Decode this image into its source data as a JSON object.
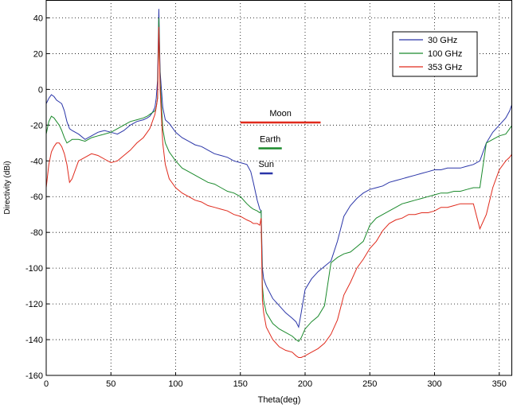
{
  "chart_data": {
    "type": "line",
    "xlabel": "Theta(deg)",
    "ylabel": "Directivity (dBi)",
    "xlim": [
      0,
      360
    ],
    "ylim": [
      -160,
      50
    ],
    "xticks": [
      0,
      50,
      100,
      150,
      200,
      250,
      300,
      350
    ],
    "yticks": [
      40,
      20,
      0,
      -20,
      -40,
      -60,
      -80,
      -100,
      -120,
      -140,
      -160
    ],
    "xtick_labels": [
      "0",
      "50",
      "100",
      "150",
      "200",
      "250",
      "300",
      "350"
    ],
    "ytick_labels": [
      "40",
      "20",
      "0",
      "-20",
      "-40",
      "-60",
      "-80",
      "-100",
      "-120",
      "-140",
      "-160"
    ],
    "grid": true,
    "legend_position": "top-right",
    "series": [
      {
        "name": "30 GHz",
        "color": "#2a35a8",
        "x": [
          0,
          2,
          4,
          6,
          8,
          10,
          12,
          14,
          16,
          18,
          20,
          25,
          30,
          35,
          40,
          45,
          50,
          55,
          60,
          65,
          70,
          75,
          78,
          80,
          82,
          84,
          85,
          86,
          87,
          88,
          90,
          92,
          95,
          100,
          105,
          110,
          115,
          120,
          125,
          130,
          135,
          140,
          145,
          150,
          155,
          158,
          160,
          163,
          165,
          166,
          167,
          168,
          170,
          175,
          180,
          185,
          190,
          193,
          195,
          197,
          200,
          205,
          210,
          215,
          220,
          225,
          230,
          235,
          240,
          245,
          250,
          255,
          260,
          265,
          270,
          275,
          280,
          285,
          290,
          295,
          300,
          305,
          310,
          315,
          320,
          325,
          330,
          335,
          340,
          345,
          350,
          355,
          358,
          360
        ],
        "y": [
          -8,
          -5,
          -3,
          -4,
          -6,
          -7,
          -8,
          -12,
          -18,
          -22,
          -23,
          -25,
          -28,
          -26,
          -24,
          -23,
          -24,
          -25,
          -23,
          -20,
          -18,
          -17,
          -16,
          -15,
          -13,
          -10,
          -5,
          5,
          45,
          10,
          -10,
          -17,
          -19,
          -24,
          -27,
          -29,
          -31,
          -32,
          -34,
          -36,
          -37,
          -38,
          -40,
          -41,
          -42,
          -46,
          -52,
          -62,
          -67,
          -68,
          -100,
          -106,
          -110,
          -117,
          -121,
          -125,
          -128,
          -130,
          -133,
          -125,
          -112,
          -106,
          -102,
          -99,
          -96,
          -85,
          -71,
          -65,
          -61,
          -58,
          -56,
          -55,
          -54,
          -52,
          -51,
          -50,
          -49,
          -48,
          -47,
          -46,
          -45,
          -45,
          -44,
          -44,
          -44,
          -43,
          -42,
          -40,
          -30,
          -24,
          -20,
          -16,
          -12,
          -8
        ]
      },
      {
        "name": "100 GHz",
        "color": "#1b8a2c",
        "x": [
          0,
          2,
          4,
          6,
          8,
          10,
          12,
          14,
          16,
          18,
          20,
          25,
          30,
          35,
          40,
          45,
          50,
          55,
          60,
          65,
          70,
          75,
          78,
          80,
          82,
          84,
          85,
          86,
          87,
          88,
          90,
          92,
          95,
          100,
          105,
          110,
          115,
          120,
          125,
          130,
          135,
          140,
          145,
          150,
          155,
          158,
          160,
          163,
          165,
          166,
          167,
          168,
          170,
          175,
          180,
          185,
          190,
          193,
          195,
          197,
          200,
          205,
          210,
          215,
          220,
          225,
          230,
          235,
          240,
          245,
          250,
          255,
          260,
          265,
          270,
          275,
          280,
          285,
          290,
          295,
          300,
          305,
          310,
          315,
          320,
          325,
          330,
          335,
          340,
          345,
          350,
          355,
          358,
          360
        ],
        "y": [
          -25,
          -18,
          -15,
          -16,
          -18,
          -20,
          -23,
          -27,
          -30,
          -29,
          -28,
          -28,
          -29,
          -27,
          -26,
          -25,
          -24,
          -22,
          -20,
          -18,
          -17,
          -16,
          -15,
          -14,
          -13,
          -12,
          -10,
          -5,
          40,
          5,
          -22,
          -30,
          -35,
          -40,
          -44,
          -46,
          -48,
          -50,
          -52,
          -53,
          -55,
          -57,
          -58,
          -60,
          -64,
          -66,
          -67,
          -68,
          -69,
          -68,
          -110,
          -118,
          -125,
          -131,
          -134,
          -136,
          -138,
          -140,
          -141,
          -139,
          -134,
          -130,
          -127,
          -121,
          -97,
          -94,
          -92,
          -91,
          -88,
          -85,
          -76,
          -72,
          -70,
          -68,
          -66,
          -64,
          -63,
          -62,
          -61,
          -60,
          -59,
          -58,
          -58,
          -57,
          -57,
          -56,
          -55,
          -55,
          -30,
          -28,
          -26,
          -25,
          -22,
          -20
        ]
      },
      {
        "name": "353 GHz",
        "color": "#e02a1c",
        "x": [
          0,
          2,
          4,
          6,
          8,
          10,
          12,
          14,
          16,
          18,
          20,
          25,
          30,
          35,
          40,
          45,
          50,
          55,
          60,
          65,
          70,
          75,
          78,
          80,
          82,
          84,
          85,
          86,
          87,
          88,
          90,
          92,
          95,
          100,
          105,
          110,
          115,
          120,
          125,
          130,
          135,
          140,
          145,
          150,
          155,
          158,
          160,
          163,
          165,
          166,
          167,
          168,
          170,
          175,
          180,
          185,
          190,
          193,
          195,
          197,
          200,
          205,
          210,
          215,
          220,
          225,
          230,
          235,
          240,
          245,
          250,
          255,
          260,
          265,
          270,
          275,
          280,
          285,
          290,
          295,
          300,
          305,
          310,
          315,
          320,
          325,
          330,
          335,
          340,
          345,
          350,
          355,
          358,
          360
        ],
        "y": [
          -55,
          -42,
          -35,
          -32,
          -30,
          -30,
          -32,
          -36,
          -42,
          -52,
          -50,
          -40,
          -38,
          -36,
          -37,
          -39,
          -41,
          -40,
          -37,
          -34,
          -30,
          -27,
          -24,
          -22,
          -18,
          -14,
          -10,
          -5,
          35,
          0,
          -30,
          -42,
          -50,
          -55,
          -58,
          -60,
          -62,
          -63,
          -65,
          -66,
          -67,
          -68,
          -70,
          -71,
          -73,
          -74,
          -75,
          -75,
          -76,
          -72,
          -118,
          -125,
          -133,
          -140,
          -144,
          -146,
          -147,
          -149,
          -150,
          -150,
          -149,
          -147,
          -145,
          -142,
          -137,
          -129,
          -115,
          -108,
          -100,
          -95,
          -89,
          -85,
          -79,
          -75,
          -73,
          -72,
          -70,
          -70,
          -69,
          -69,
          -68,
          -66,
          -66,
          -65,
          -64,
          -64,
          -64,
          -78,
          -70,
          -55,
          -45,
          -40,
          -38,
          -36
        ]
      }
    ],
    "annotations": [
      {
        "label": "Moon",
        "color": "#e02a1c",
        "x_start": 150,
        "x_end": 212,
        "y": -18.5
      },
      {
        "label": "Earth",
        "color": "#1b8a2c",
        "x_start": 164,
        "x_end": 182,
        "y": -33
      },
      {
        "label": "Sun",
        "color": "#2a35a8",
        "x_start": 165,
        "x_end": 175,
        "y": -47
      }
    ]
  }
}
